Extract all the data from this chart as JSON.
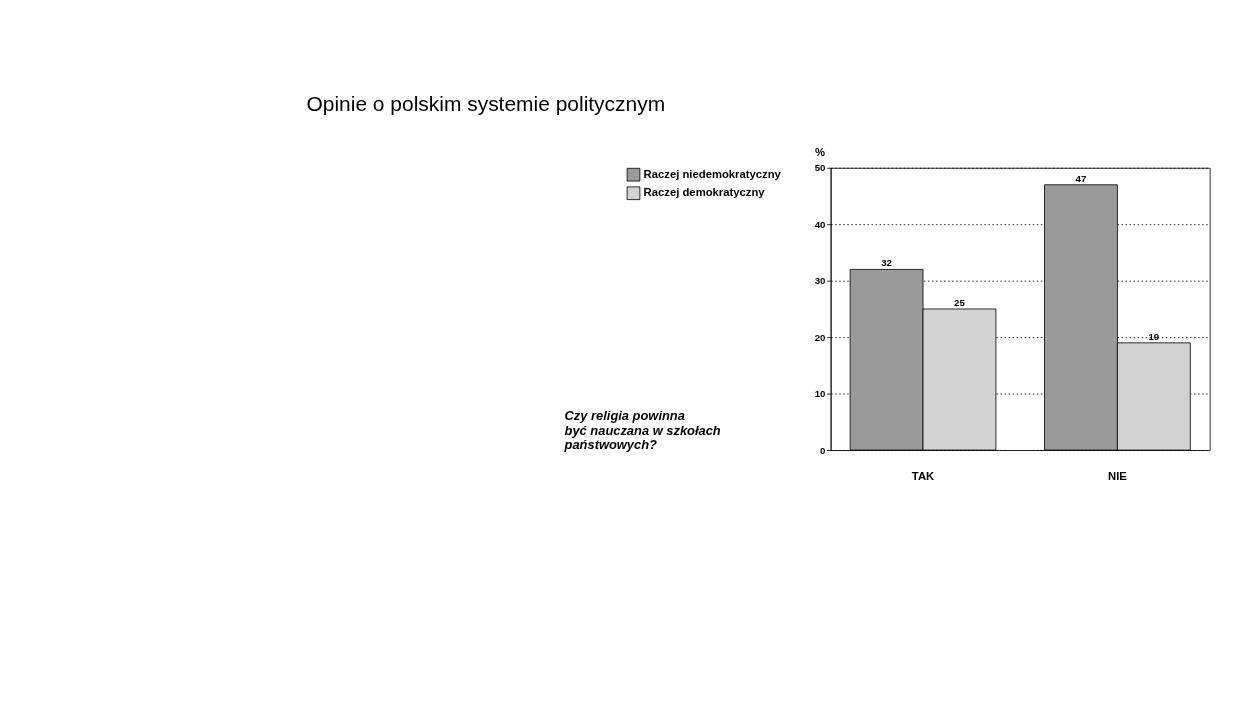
{
  "chart_data": {
    "type": "bar",
    "title": "Opinie o polskim systemie politycznym",
    "ylabel": "%",
    "categories": [
      "TAK",
      "NIE"
    ],
    "series": [
      {
        "name": "Raczej niedemokratyczny",
        "color": "#9a9a9a",
        "values": [
          32,
          47
        ]
      },
      {
        "name": "Raczej demokratyczny",
        "color": "#d2d2d2",
        "values": [
          25,
          19
        ]
      }
    ],
    "ylim": [
      0,
      50
    ],
    "yticks": [
      0,
      10,
      20,
      30,
      40,
      50
    ],
    "grid": "y",
    "line_style": "dotted",
    "data_labels": true,
    "legend": "top left",
    "annotations": [
      "Czy religia powinna\nbyć nauczana w szkołach\npaństwowych?"
    ]
  }
}
